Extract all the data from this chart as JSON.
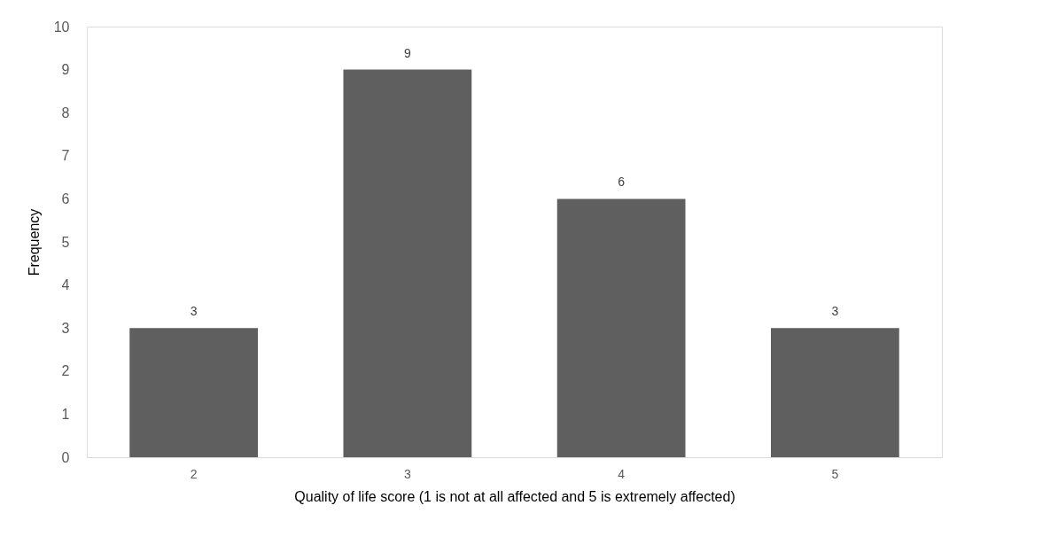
{
  "chart_data": {
    "type": "bar",
    "xlabel": "Quality of life score (1 is not at all affected and 5 is extremely affected)",
    "ylabel": "Frequency",
    "categories": [
      "2",
      "3",
      "4",
      "5"
    ],
    "values": [
      3,
      9,
      6,
      3
    ],
    "color": "#5f5f5f",
    "ylim": [
      0,
      10
    ],
    "yticks": [
      0,
      1,
      2,
      3,
      4,
      5,
      6,
      7,
      8,
      9,
      10
    ],
    "grid": false,
    "data_labels": true
  }
}
